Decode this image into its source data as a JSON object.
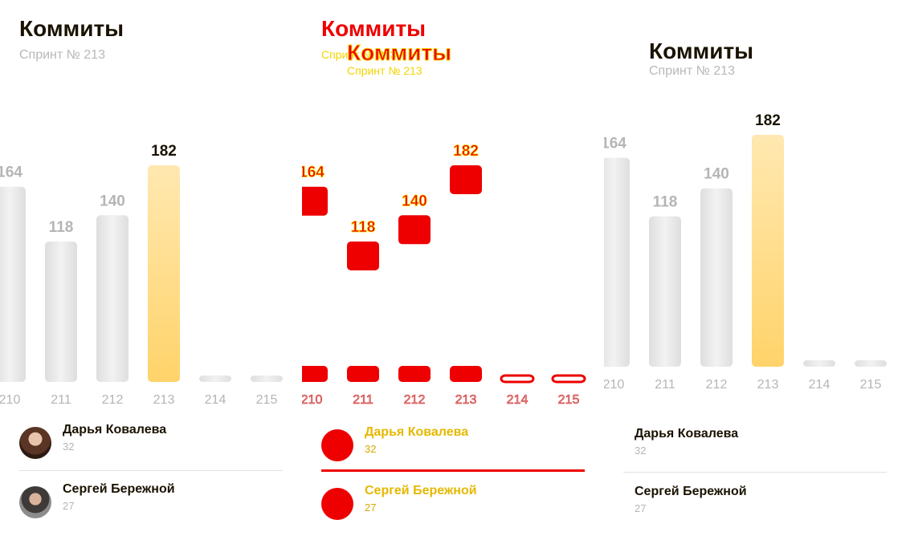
{
  "title": "Коммиты",
  "subtitle": "Спринт № 213",
  "chart_data": {
    "type": "bar",
    "title": "Коммиты",
    "subtitle": "Спринт № 213",
    "categories": [
      "210",
      "211",
      "212",
      "213",
      "214",
      "215"
    ],
    "values": [
      164,
      118,
      140,
      182,
      0,
      0
    ],
    "highlight_category": "213",
    "ylim": [
      0,
      182
    ]
  },
  "users": [
    {
      "name": "Дарья Ковалева",
      "count": "32"
    },
    {
      "name": "Сергей Бережной",
      "count": "27"
    }
  ],
  "colors": {
    "bar": "#e6e6e6",
    "highlight_top": "#ffe8b0",
    "highlight_bottom": "#ffd36a",
    "text": "#1a1200",
    "muted": "#b5b5b5",
    "debug_red": "#ee0000",
    "debug_yellow": "#f4d400"
  },
  "icons": [
    "avatar-photo-icon"
  ]
}
